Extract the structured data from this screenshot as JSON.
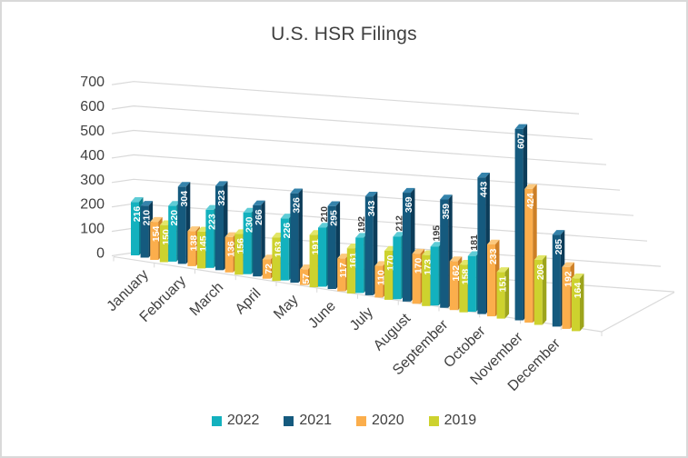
{
  "window": {
    "background": "#ffffff",
    "border_color": "#d9d9d9",
    "text_color": "#404040",
    "gridline_color": "#d9d9d9"
  },
  "chart_data": {
    "type": "bar",
    "subtype": "3d-clustered-column",
    "title": "U.S. HSR Filings",
    "xlabel": "",
    "ylabel": "",
    "ylim": [
      0,
      700
    ],
    "ytick_step": 100,
    "ytick_labels": [
      "0",
      "100",
      "200",
      "300",
      "400",
      "500",
      "600",
      "700"
    ],
    "gridlines": true,
    "legend_position": "bottom",
    "categories": [
      "January",
      "February",
      "March",
      "April",
      "May",
      "June",
      "July",
      "August",
      "September",
      "October",
      "November",
      "December"
    ],
    "series": [
      {
        "name": "2022",
        "color": "#13b1be",
        "color_top": "#5fccd6",
        "color_side": "#0b7e8c",
        "values": [
          216,
          220,
          223,
          230,
          226,
          210,
          192,
          212,
          195,
          181,
          null,
          null
        ],
        "dark_outside_label_indices": [
          5,
          6,
          7,
          8,
          9
        ]
      },
      {
        "name": "2021",
        "color": "#155a7e",
        "color_top": "#3583ab",
        "color_side": "#0c3c59",
        "values": [
          210,
          304,
          323,
          266,
          326,
          295,
          343,
          369,
          359,
          443,
          607,
          285
        ],
        "dark_outside_label_indices": []
      },
      {
        "name": "2020",
        "color": "#fbae4c",
        "color_top": "#fcc97e",
        "color_side": "#cd7f26",
        "values": [
          154,
          138,
          136,
          72,
          57,
          117,
          110,
          170,
          162,
          233,
          424,
          192
        ],
        "dark_outside_label_indices": []
      },
      {
        "name": "2019",
        "color": "#cdd22e",
        "color_top": "#e2e668",
        "color_side": "#9da41c",
        "values": [
          150,
          145,
          156,
          163,
          191,
          161,
          170,
          173,
          158,
          151,
          206,
          164
        ],
        "dark_outside_label_indices": []
      }
    ],
    "value_label_color_inside": "#ffffff",
    "value_label_color_outside": "#404040"
  }
}
